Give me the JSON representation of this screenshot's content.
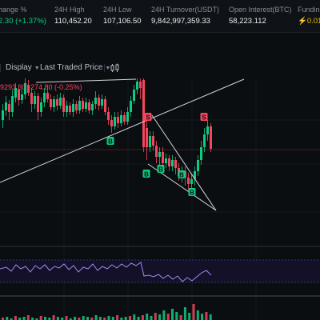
{
  "stats": [
    {
      "label": "hange %",
      "value": "2.30 (+1.37%)",
      "tone": "up"
    },
    {
      "label": "24H High",
      "value": "110,452.20",
      "tone": "normal"
    },
    {
      "label": "24H Low",
      "value": "107,106.50",
      "tone": "normal"
    },
    {
      "label": "24H Turnover(USDT)",
      "value": "9,842,997,359.33",
      "tone": "normal"
    },
    {
      "label": "Open Interest(BTC)",
      "value": "58,223.112",
      "tone": "normal"
    },
    {
      "label": "Funding",
      "value": "⚡0.01",
      "tone": "orange"
    }
  ],
  "toolbar": {
    "display_label": "Display",
    "price_type_label": "Last Traded Price"
  },
  "legend": {
    "text": "9293.30 -274.80 (-0.25%)"
  },
  "markers": {
    "buy": "B",
    "sell": "S"
  },
  "colors": {
    "up": "#0ecb81",
    "down": "#f6465d",
    "bg": "#0b0e11"
  },
  "icons": {
    "indicator": "candlestick-indicator-icon"
  }
}
